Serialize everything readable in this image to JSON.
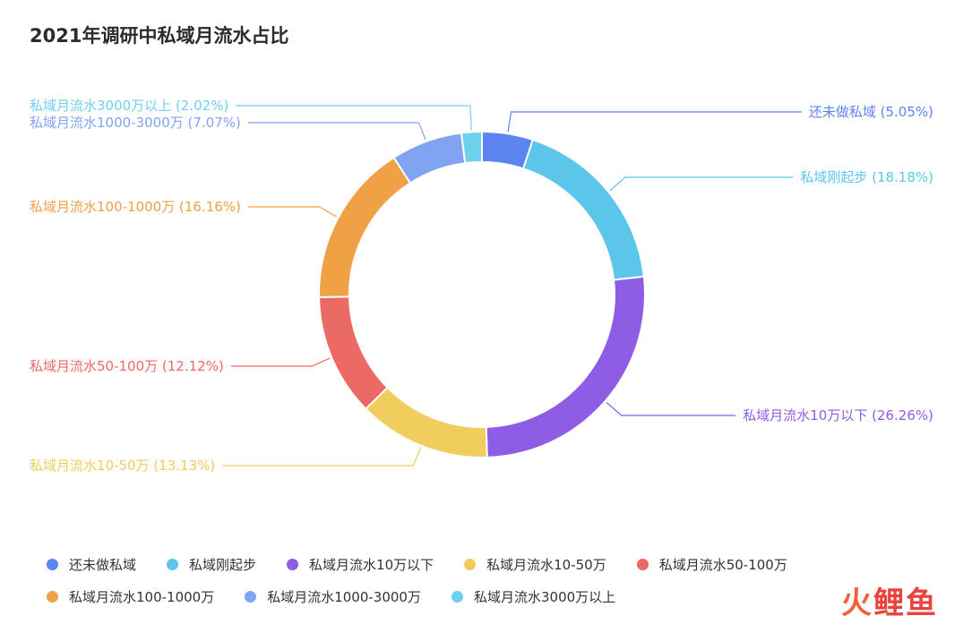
{
  "chart_data": {
    "type": "pie",
    "title": "2021年调研中私域月流水占比",
    "donut": true,
    "series": [
      {
        "name": "还未做私域",
        "value": 5.05,
        "label": "还未做私域 (5.05%)",
        "color": "#5b84f0"
      },
      {
        "name": "私域刚起步",
        "value": 18.18,
        "label": "私域刚起步 (18.18%)",
        "color": "#5bc6ea"
      },
      {
        "name": "私域月流水10万以下",
        "value": 26.26,
        "label": "私域月流水10万以下 (26.26%)",
        "color": "#8f5ce6"
      },
      {
        "name": "私域月流水10-50万",
        "value": 13.13,
        "label": "私域月流水10-50万 (13.13%)",
        "color": "#f0cd5c"
      },
      {
        "name": "私域月流水50-100万",
        "value": 12.12,
        "label": "私域月流水50-100万 (12.12%)",
        "color": "#ec6a66"
      },
      {
        "name": "私域月流水100-1000万",
        "value": 16.16,
        "label": "私域月流水100-1000万 (16.16%)",
        "color": "#f0a045"
      },
      {
        "name": "私域月流水1000-3000万",
        "value": 7.07,
        "label": "私域月流水1000-3000万 (7.07%)",
        "color": "#80a4f2"
      },
      {
        "name": "私域月流水3000万以上",
        "value": 2.02,
        "label": "私域月流水3000万以上 (2.02%)",
        "color": "#6fd0ee"
      }
    ],
    "legend": {
      "position": "bottom",
      "rows": [
        [
          0,
          1,
          2,
          3,
          4
        ],
        [
          5,
          6,
          7
        ]
      ]
    }
  },
  "watermark": {
    "part1": "火",
    "part2": "鲤鱼"
  }
}
